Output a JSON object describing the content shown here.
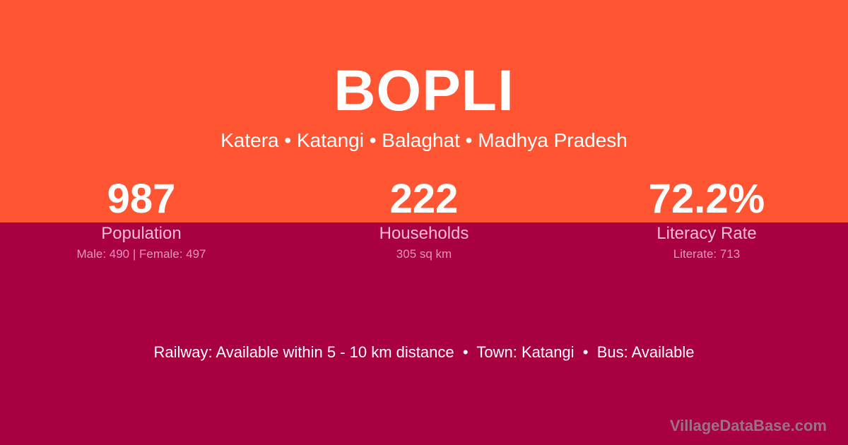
{
  "village": {
    "name": "BOPLI",
    "breadcrumb": "Katera • Katangi • Balaghat • Madhya Pradesh"
  },
  "stats": [
    {
      "value": "987",
      "label": "Population",
      "sub": "Male: 490 | Female: 497"
    },
    {
      "value": "222",
      "label": "Households",
      "sub": "305 sq km"
    },
    {
      "value": "72.2%",
      "label": "Literacy Rate",
      "sub": "Literate: 713"
    }
  ],
  "transport": "Railway: Available within 5 - 10 km distance  •  Town: Katangi  •  Bus: Available",
  "watermark": "VillageDataBase.com",
  "colors": {
    "top": "#FF5533",
    "bottom": "#A80040"
  }
}
